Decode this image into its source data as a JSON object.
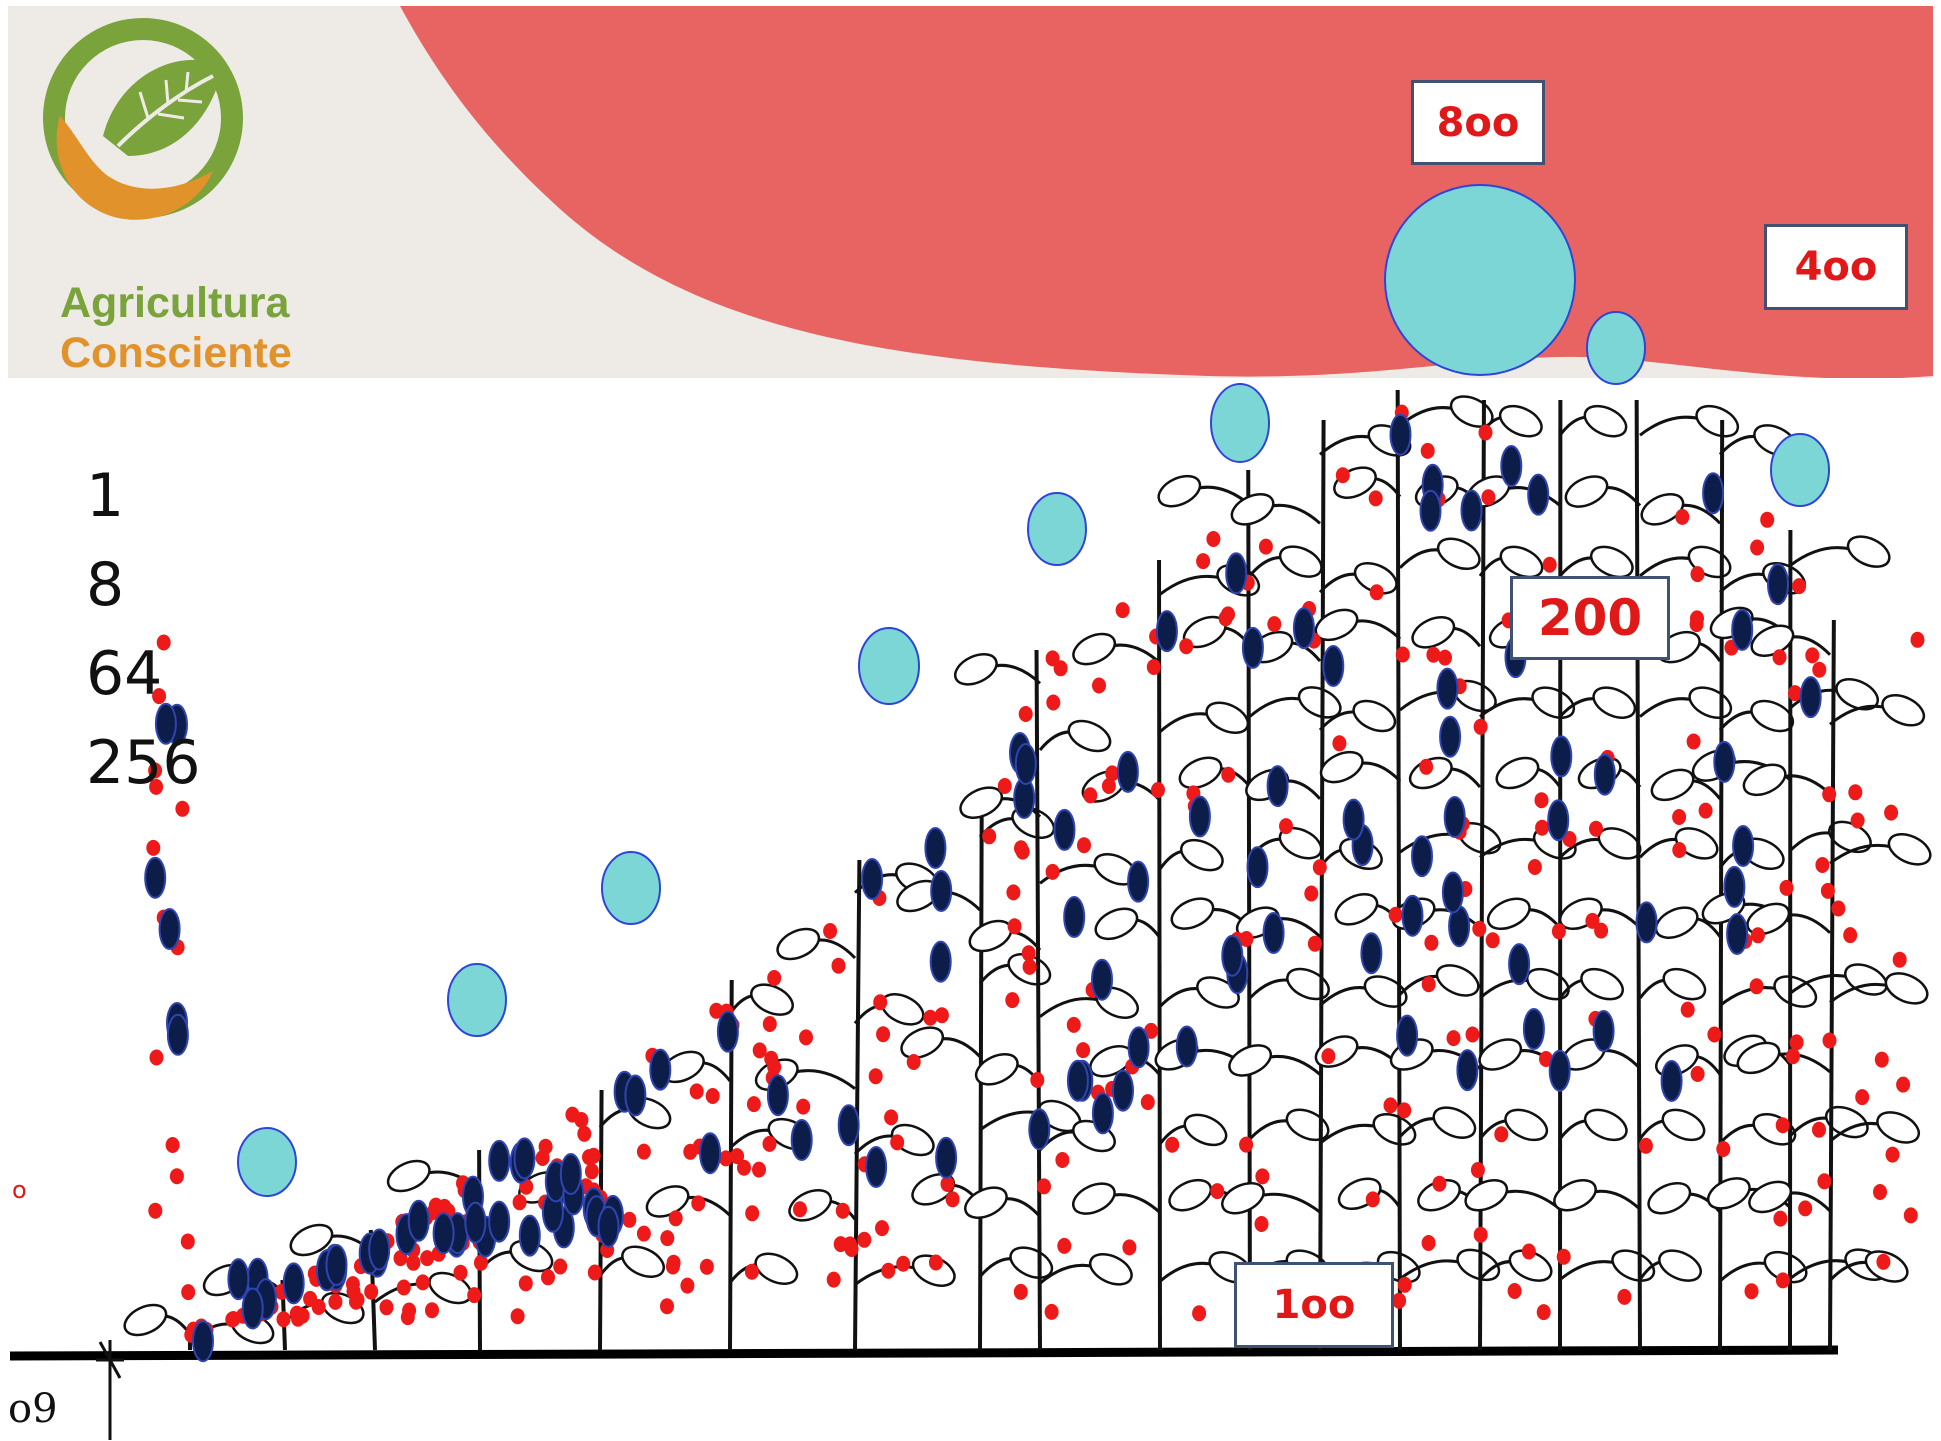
{
  "logo": {
    "line1": "Agricultura",
    "line2": "Consciente",
    "colors": {
      "green": "#7aa33b",
      "orange": "#e2922a"
    }
  },
  "sequence": [
    "1",
    "8",
    "64",
    "256"
  ],
  "value_boxes": {
    "b800": "8oo",
    "b400": "4oo",
    "b200": "200",
    "b100": "1oo"
  },
  "ground_marks": "o9",
  "left_marker": "o",
  "colors": {
    "banner_bg": "#eeebe6",
    "banner_wave": "#e76462",
    "cyan_circle": "#7dd6d6",
    "navy_oval": "#0d1d4a",
    "red_dot": "#ee1a1a",
    "plant_ink": "#111111"
  }
}
